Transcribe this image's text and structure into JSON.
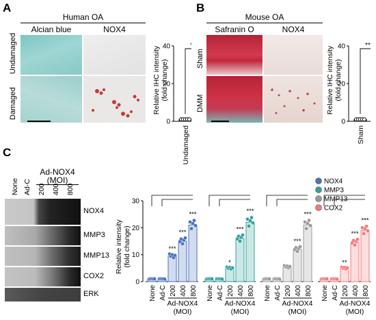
{
  "panel_a": {
    "letter": "A",
    "group_title": "Human OA",
    "col_labels": [
      "Alcian blue",
      "NOX4"
    ],
    "row_labels": [
      "Undamaged",
      "Damaged"
    ],
    "chart_data": {
      "type": "bar",
      "ylabel": "Relative IHC intensity\n(fold change)",
      "ylabel_line1": "Relative IHC intensity",
      "ylabel_line2": "(fold change)",
      "categories": [
        "Undamaged",
        "Damaged"
      ],
      "values": [
        1,
        26
      ],
      "points": [
        [
          1,
          1,
          1,
          1,
          1
        ],
        [
          23,
          25,
          26,
          27,
          29
        ]
      ],
      "ylim": [
        0,
        40
      ],
      "yticks": [
        "0",
        "20",
        "40"
      ],
      "significance": "***"
    }
  },
  "panel_b": {
    "letter": "B",
    "group_title": "Mouse OA",
    "col_labels": [
      "Safranin  O",
      "NOX4"
    ],
    "row_labels": [
      "Sham",
      "DMM"
    ],
    "chart_data": {
      "type": "bar",
      "ylabel_line1": "Relative IHC intensity",
      "ylabel_line2": "(fold change)",
      "categories": [
        "Sham",
        "DMM"
      ],
      "values": [
        1,
        23
      ],
      "points": [
        [
          1,
          1,
          1,
          1,
          1
        ],
        [
          19,
          22,
          23,
          24,
          25
        ]
      ],
      "ylim": [
        0,
        40
      ],
      "yticks": [
        "0",
        "20",
        "40"
      ],
      "significance": "***"
    }
  },
  "panel_c": {
    "letter": "C",
    "treatment_label": "Ad-NOX4",
    "moi_label": "(MOI)",
    "lanes": [
      "None",
      "Ad-C",
      "200",
      "400",
      "800"
    ],
    "blot_labels": [
      "NOX4",
      "MMP3",
      "MMP13",
      "COX2",
      "ERK"
    ],
    "legend": [
      {
        "name": "NOX4",
        "color": "#4a72c0"
      },
      {
        "name": "MMP3",
        "color": "#2fa39c"
      },
      {
        "name": "MMP13",
        "color": "#9a9a9a"
      },
      {
        "name": "COX2",
        "color": "#f27a7a"
      }
    ],
    "chart_data": {
      "type": "bar",
      "ylabel_line1": "Relative intensity",
      "ylabel_line2": "(fold change)",
      "ylim": [
        0,
        30
      ],
      "yticks": [
        "0",
        "10",
        "20",
        "30"
      ],
      "categories": [
        "None",
        "Ad-C",
        "200",
        "400",
        "800"
      ],
      "group_label": "Ad-NOX4",
      "group_sublabel": "(MOI)",
      "series": [
        {
          "name": "NOX4",
          "values": [
            1,
            1,
            9.5,
            15,
            21
          ],
          "sig": [
            "",
            "",
            "***",
            "***",
            "***"
          ]
        },
        {
          "name": "MMP3",
          "values": [
            1,
            1,
            5,
            16,
            22
          ],
          "sig": [
            "",
            "",
            "*",
            "***",
            "***"
          ]
        },
        {
          "name": "MMP13",
          "values": [
            1,
            1,
            5.5,
            12,
            21
          ],
          "sig": [
            "",
            "",
            "",
            "***",
            "***"
          ]
        },
        {
          "name": "COX2",
          "values": [
            1,
            1,
            5,
            14.5,
            19
          ],
          "sig": [
            "",
            "",
            "**",
            "***",
            "***"
          ]
        }
      ]
    }
  }
}
